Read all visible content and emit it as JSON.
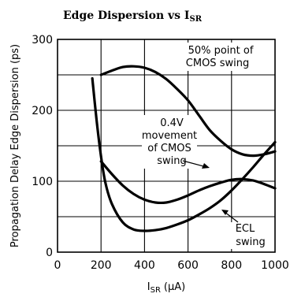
{
  "chart_data": {
    "type": "line",
    "title": "Edge Dispersion vs I",
    "title_sub": "SR",
    "xlabel": "I",
    "xlabel_sub": "SR",
    "xlabel_unit": "(μA)",
    "ylabel": "Propagation Delay Edge Dispersion (ps)",
    "xlim": [
      0,
      1000
    ],
    "ylim": [
      0,
      300
    ],
    "xticks": [
      0,
      200,
      400,
      600,
      800,
      1000
    ],
    "yticks": [
      0,
      100,
      200,
      300
    ],
    "y_minor_grid": [
      50,
      150,
      250
    ],
    "grid": true,
    "series": [
      {
        "name": "50% point of CMOS swing",
        "x": [
          200,
          250,
          300,
          350,
          400,
          450,
          500,
          550,
          600,
          650,
          700,
          750,
          800,
          850,
          900,
          950,
          1000
        ],
        "y": [
          250,
          256,
          261,
          262,
          260,
          254,
          244,
          230,
          214,
          193,
          172,
          157,
          145,
          138,
          136,
          138,
          142
        ]
      },
      {
        "name": "0.4V movement of CMOS swing",
        "x": [
          200,
          250,
          300,
          350,
          400,
          450,
          500,
          550,
          600,
          650,
          700,
          750,
          800,
          850,
          900,
          950,
          1000
        ],
        "y": [
          128,
          110,
          94,
          82,
          74,
          70,
          70,
          74,
          80,
          87,
          93,
          98,
          102,
          103,
          101,
          96,
          90
        ]
      },
      {
        "name": "ECL swing",
        "x": [
          160,
          180,
          200,
          220,
          250,
          300,
          350,
          400,
          450,
          500,
          550,
          600,
          650,
          700,
          750,
          800,
          850,
          900,
          950,
          1000
        ],
        "y": [
          245,
          185,
          135,
          98,
          68,
          42,
          32,
          30,
          31,
          34,
          39,
          45,
          53,
          62,
          73,
          87,
          103,
          120,
          138,
          155
        ]
      }
    ],
    "annotations": {
      "s50_line1": "50% point of",
      "s50_line2": "CMOS swing",
      "s04_line1": "0.4V",
      "s04_line2": "movement",
      "s04_line3": "of CMOS",
      "s04_line4": "swing",
      "ecl_line1": "ECL",
      "ecl_line2": "swing"
    }
  }
}
